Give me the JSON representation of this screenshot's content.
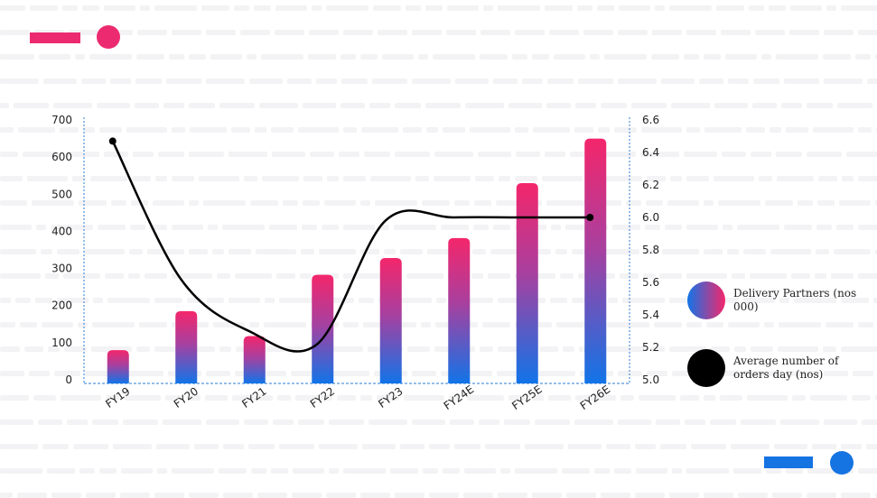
{
  "colors": {
    "accent_pink": "#EC2A6F",
    "accent_blue": "#1573E2",
    "line": "#000000",
    "axis_dash": "#2B7BD3"
  },
  "chart_data": {
    "type": "bar",
    "categories": [
      "FY19",
      "FY20",
      "FY21",
      "FY22",
      "FY23",
      "FY24E",
      "FY25E",
      "FY26E"
    ],
    "series": [
      {
        "name": "Delivery Partners (nos 000)",
        "type": "bar",
        "axis": "left",
        "values": [
          80,
          185,
          118,
          283,
          328,
          382,
          530,
          650
        ]
      },
      {
        "name": "Average number of orders day (nos)",
        "type": "line",
        "axis": "right",
        "values": [
          6.47,
          5.62,
          5.3,
          5.22,
          5.98,
          6.0,
          6.0,
          6.0
        ]
      }
    ],
    "y_left": {
      "ticks": [
        0,
        100,
        200,
        300,
        400,
        500,
        600,
        700
      ],
      "lim": [
        0,
        700
      ]
    },
    "y_right": {
      "ticks": [
        5.0,
        5.2,
        5.4,
        5.6,
        5.8,
        6.0,
        6.2,
        6.4,
        6.6
      ],
      "lim": [
        5.0,
        6.6
      ]
    },
    "legend": {
      "placement": "right",
      "items": [
        {
          "label": "Delivery Partners (nos 000)",
          "marker": "gradient-circle"
        },
        {
          "label": "Average number of orders day (nos)",
          "marker": "black-circle"
        }
      ]
    },
    "grid": false
  }
}
